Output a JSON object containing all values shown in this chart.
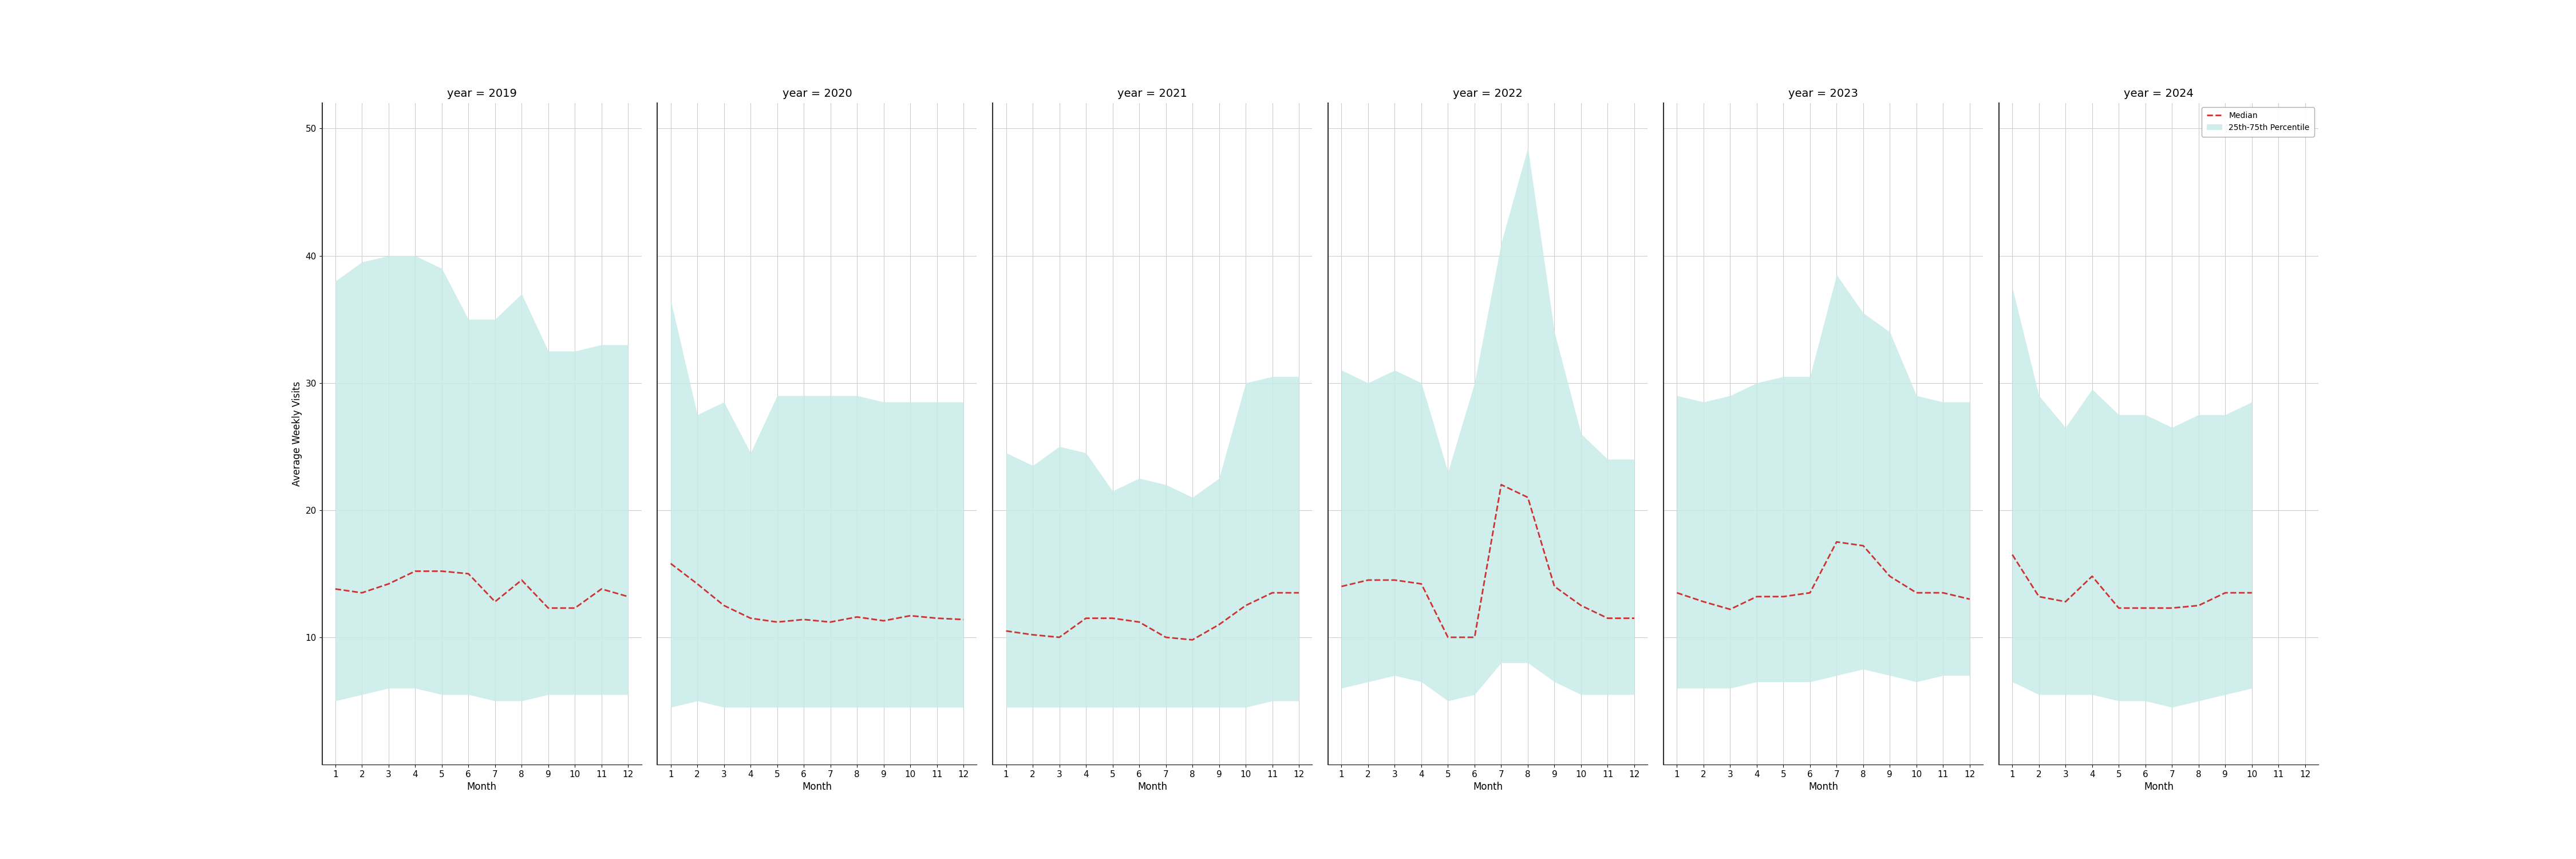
{
  "years": [
    2019,
    2020,
    2021,
    2022,
    2023,
    2024
  ],
  "months": [
    1,
    2,
    3,
    4,
    5,
    6,
    7,
    8,
    9,
    10,
    11,
    12
  ],
  "median": {
    "2019": [
      13.8,
      13.5,
      14.2,
      15.2,
      15.2,
      15.0,
      12.8,
      14.5,
      12.3,
      12.3,
      13.8,
      13.2
    ],
    "2020": [
      15.8,
      14.2,
      12.5,
      11.5,
      11.2,
      11.4,
      11.2,
      11.6,
      11.3,
      11.7,
      11.5,
      11.4
    ],
    "2021": [
      10.5,
      10.2,
      10.0,
      11.5,
      11.5,
      11.2,
      10.0,
      9.8,
      11.0,
      12.5,
      13.5,
      13.5
    ],
    "2022": [
      14.0,
      14.5,
      14.5,
      14.2,
      10.0,
      10.0,
      22.0,
      21.0,
      14.0,
      12.5,
      11.5,
      11.5
    ],
    "2023": [
      13.5,
      12.8,
      12.2,
      13.2,
      13.2,
      13.5,
      17.5,
      17.2,
      14.8,
      13.5,
      13.5,
      13.0
    ],
    "2024": [
      16.5,
      13.2,
      12.8,
      14.8,
      12.3,
      12.3,
      12.3,
      12.5,
      13.5,
      13.5,
      null,
      null
    ]
  },
  "q25": {
    "2019": [
      5.0,
      5.5,
      6.0,
      6.0,
      5.5,
      5.5,
      5.0,
      5.0,
      5.5,
      5.5,
      5.5,
      5.5
    ],
    "2020": [
      4.5,
      5.0,
      4.5,
      4.5,
      4.5,
      4.5,
      4.5,
      4.5,
      4.5,
      4.5,
      4.5,
      4.5
    ],
    "2021": [
      4.5,
      4.5,
      4.5,
      4.5,
      4.5,
      4.5,
      4.5,
      4.5,
      4.5,
      4.5,
      5.0,
      5.0
    ],
    "2022": [
      6.0,
      6.5,
      7.0,
      6.5,
      5.0,
      5.5,
      8.0,
      8.0,
      6.5,
      5.5,
      5.5,
      5.5
    ],
    "2023": [
      6.0,
      6.0,
      6.0,
      6.5,
      6.5,
      6.5,
      7.0,
      7.5,
      7.0,
      6.5,
      7.0,
      7.0
    ],
    "2024": [
      6.5,
      5.5,
      5.5,
      5.5,
      5.0,
      5.0,
      4.5,
      5.0,
      5.5,
      6.0,
      null,
      null
    ]
  },
  "q75": {
    "2019": [
      38.0,
      39.5,
      40.0,
      40.0,
      39.0,
      35.0,
      35.0,
      37.0,
      32.5,
      32.5,
      33.0,
      33.0
    ],
    "2020": [
      36.5,
      27.5,
      28.5,
      24.5,
      29.0,
      29.0,
      29.0,
      29.0,
      28.5,
      28.5,
      28.5,
      28.5
    ],
    "2021": [
      24.5,
      23.5,
      25.0,
      24.5,
      21.5,
      22.5,
      22.0,
      21.0,
      22.5,
      30.0,
      30.5,
      30.5
    ],
    "2022": [
      31.0,
      30.0,
      31.0,
      30.0,
      23.0,
      30.0,
      41.0,
      48.5,
      34.0,
      26.0,
      24.0,
      24.0
    ],
    "2023": [
      29.0,
      28.5,
      29.0,
      30.0,
      30.5,
      30.5,
      38.5,
      35.5,
      34.0,
      29.0,
      28.5,
      28.5
    ],
    "2024": [
      37.5,
      29.0,
      26.5,
      29.5,
      27.5,
      27.5,
      26.5,
      27.5,
      27.5,
      28.5,
      null,
      null
    ]
  },
  "fill_color": "#c8ece8",
  "fill_alpha": 0.85,
  "line_color": "#cc3333",
  "line_style": "--",
  "line_width": 2.0,
  "ylabel": "Average Weekly Visits",
  "xlabel": "Month",
  "ylim": [
    0,
    52
  ],
  "yticks": [
    10,
    20,
    30,
    40,
    50
  ],
  "xticks": [
    1,
    2,
    3,
    4,
    5,
    6,
    7,
    8,
    9,
    10,
    11,
    12
  ],
  "bg_color": "#ffffff",
  "grid_color": "#cccccc",
  "title_fontsize": 14,
  "label_fontsize": 12,
  "tick_fontsize": 11
}
